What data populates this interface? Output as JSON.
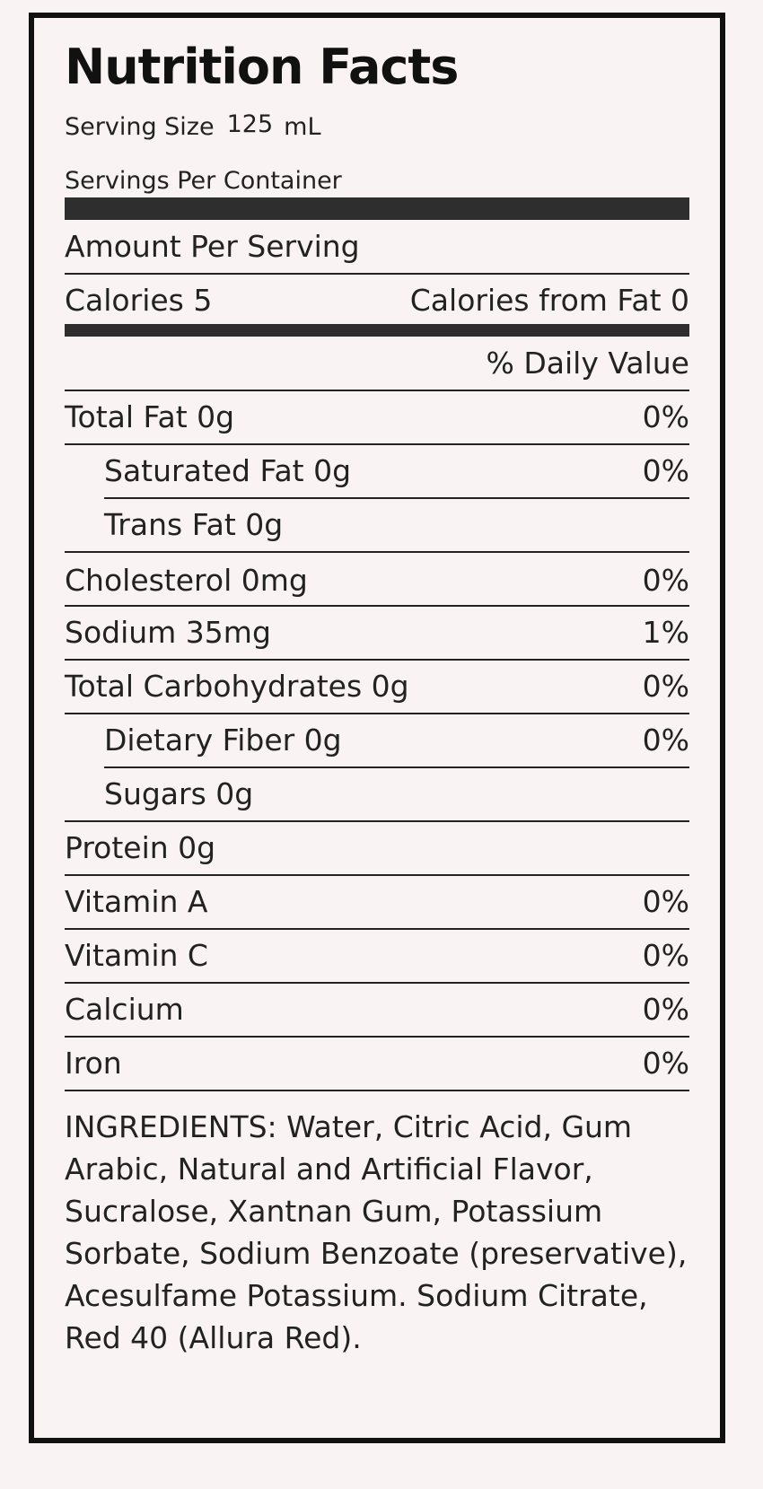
{
  "title": "Nutrition Facts",
  "serving": {
    "label": "Serving Size",
    "value": "125",
    "unit": "mL",
    "per_container_label": "Servings Per Container"
  },
  "amount_per_serving": "Amount Per Serving",
  "calories": "Calories 5",
  "calories_from_fat": "Calories from Fat 0",
  "daily_value_header": "% Daily Value",
  "nutrients": [
    {
      "name": "Total Fat 0g",
      "dv": "0%"
    },
    {
      "name": "Saturated Fat 0g",
      "dv": "0%"
    },
    {
      "name": "Trans Fat 0g",
      "dv": ""
    },
    {
      "name": "Cholesterol 0mg",
      "dv": "0%"
    },
    {
      "name": "Sodium 35mg",
      "dv": "1%"
    },
    {
      "name": "Total Carbohydrates 0g",
      "dv": "0%"
    },
    {
      "name": "Dietary Fiber 0g",
      "dv": "0%"
    },
    {
      "name": "Sugars 0g",
      "dv": ""
    },
    {
      "name": "Protein 0g",
      "dv": ""
    }
  ],
  "vitamins": [
    {
      "name": "Vitamin A",
      "dv": "0%"
    },
    {
      "name": "Vitamin C",
      "dv": "0%"
    },
    {
      "name": "Calcium",
      "dv": "0%"
    },
    {
      "name": "Iron",
      "dv": "0%"
    }
  ],
  "ingredients": "INGREDIENTS: Water, Citric Acid, Gum Arabic, Natural and Artificial Flavor, Sucralose, Xantnan Gum, Potassium Sorbate, Sodium Benzoate (preservative), Acesulfame Potassium. Sodium Citrate, Red 40 (Allura Red)."
}
